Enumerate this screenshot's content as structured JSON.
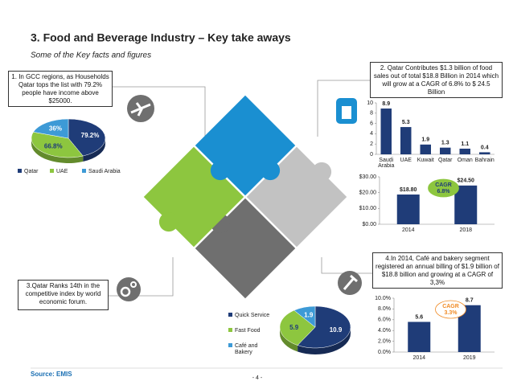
{
  "title": "3. Food and Beverage Industry – Key take aways",
  "subtitle": "Some of the  Key facts and figures",
  "boxes": [
    "1. In GCC regions, as Households Qatar tops the list with 79.2% people have income above $25000.",
    "2. Qatar Contributes  $1.3  billion of food sales out of total $18.8 Billion in 2014 which will grow at a CAGR of 6.8% to $ 24.5 Billion",
    "3.Qatar Ranks 14th in the competitive index by world economic forum.",
    "4.In 2014, Café and bakery segment registered an annual billing of $1.9 billion  of  $18.8 billion and growing at a CAGR of 3,3%"
  ],
  "source": "Source: EMIS",
  "page_number": "- 4 -",
  "chart_data": [
    {
      "type": "pie",
      "categories": [
        "Qatar",
        "UAE",
        "Saudi Arabia"
      ],
      "values": [
        79.2,
        66.8,
        36
      ],
      "value_labels": [
        "79.2%",
        "66.8%",
        "36%"
      ],
      "colors": [
        "#1f3c78",
        "#8dc63f",
        "#3d9ad6"
      ],
      "legend": "bottom"
    },
    {
      "type": "bar",
      "categories": [
        "Saudi Arabia",
        "UAE",
        "Kuwait",
        "Qatar",
        "Oman",
        "Bahrain"
      ],
      "values": [
        8.9,
        5.3,
        1.9,
        1.3,
        1.1,
        0.4
      ],
      "color": "#1f3c78",
      "ylim": [
        0,
        10
      ],
      "yticks": [
        0,
        2,
        4,
        6,
        8,
        10
      ]
    },
    {
      "type": "bar",
      "categories": [
        "2014",
        "2018"
      ],
      "values": [
        18.8,
        24.5
      ],
      "value_labels": [
        "$18.80",
        "$24.50"
      ],
      "color": "#1f3c78",
      "ylim": [
        0,
        30
      ],
      "yticks": [
        {
          "value": 0,
          "label": "$0.00"
        },
        {
          "value": 10,
          "label": "$10.00"
        },
        {
          "value": 20,
          "label": "$20.00"
        },
        {
          "value": 30,
          "label": "$30.00"
        }
      ],
      "annotation": [
        "CAGR",
        "6.8%"
      ],
      "annotation_color": "#8dc63f"
    },
    {
      "type": "bar",
      "categories": [
        "2014",
        "2019"
      ],
      "values": [
        5.6,
        8.7
      ],
      "color": "#1f3c78",
      "ylim": [
        0,
        10
      ],
      "yticks": [
        {
          "value": 0,
          "label": "0.0%"
        },
        {
          "value": 2,
          "label": "2.0%"
        },
        {
          "value": 4,
          "label": "4.0%"
        },
        {
          "value": 6,
          "label": "6.0%"
        },
        {
          "value": 8,
          "label": "8.0%"
        },
        {
          "value": 10,
          "label": "10.0%"
        }
      ],
      "annotation": [
        "CAGR",
        "3.3%"
      ],
      "annotation_color": "#f08a24"
    },
    {
      "type": "pie",
      "categories": [
        "Quick Service",
        "Fast Food",
        "Café and Bakery"
      ],
      "values": [
        10.9,
        5.9,
        1.9
      ],
      "colors": [
        "#1f3c78",
        "#8dc63f",
        "#3d9ad6"
      ],
      "legend": "left"
    }
  ]
}
